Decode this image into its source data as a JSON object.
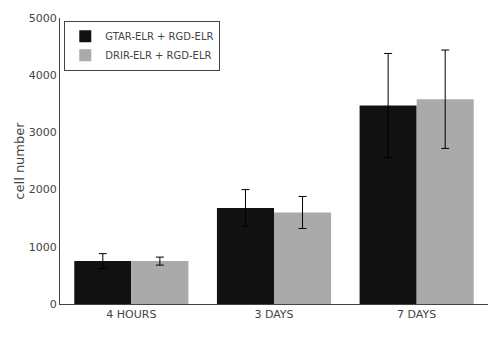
{
  "chart_data": {
    "type": "bar",
    "categories": [
      "4 HOURS",
      "3 DAYS",
      "7 DAYS"
    ],
    "series": [
      {
        "name": "GTAR-ELR + RGD-ELR",
        "color": "#111111",
        "values": [
          750,
          1680,
          3470
        ],
        "errors": [
          130,
          320,
          910
        ]
      },
      {
        "name": "DRIR-ELR + RGD-ELR",
        "color": "#aaaaaa",
        "values": [
          750,
          1600,
          3580
        ],
        "errors": [
          70,
          280,
          860
        ]
      }
    ],
    "ylabel": "cell number",
    "ylim": [
      0,
      5000
    ],
    "yticks": [
      0,
      1000,
      2000,
      3000,
      4000,
      5000
    ],
    "legend": "upper left",
    "grid": false
  }
}
